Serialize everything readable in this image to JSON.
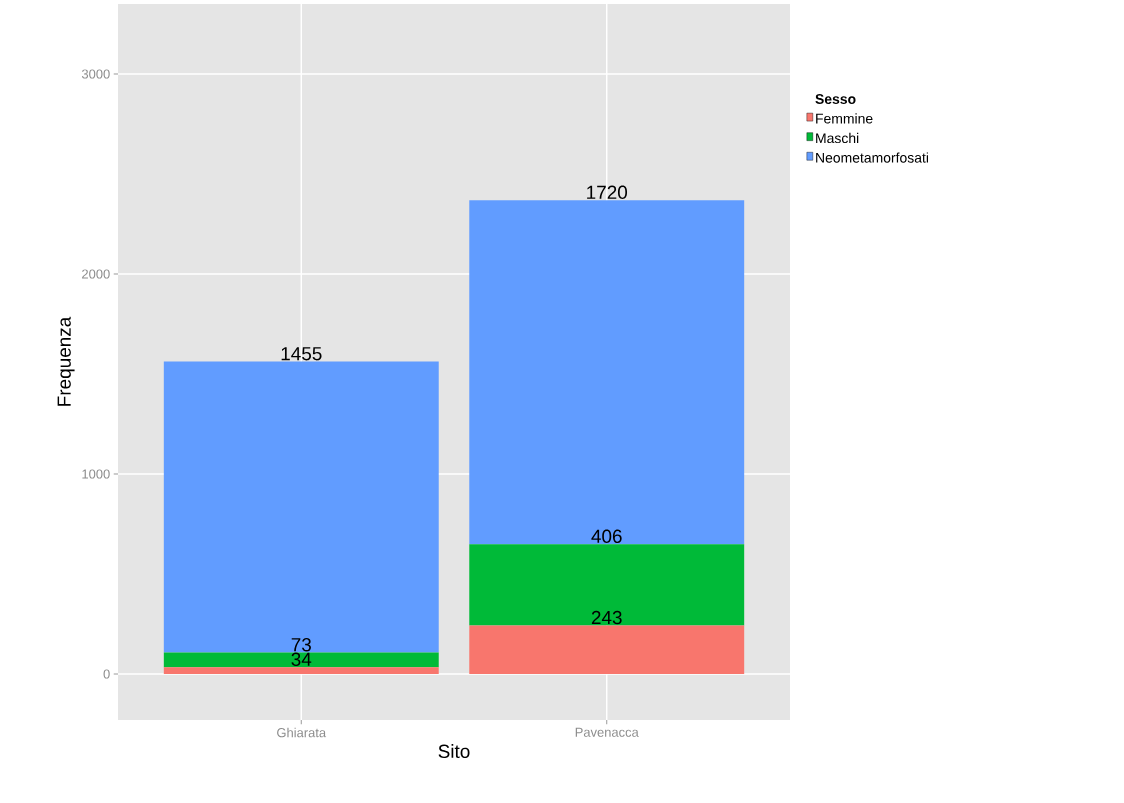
{
  "chart_data": {
    "type": "bar",
    "stacked": true,
    "xlabel": "Sito",
    "ylabel": "Frequenza",
    "legend_title": "Sesso",
    "legend": "right",
    "categories": [
      "Ghiarata",
      "Pavenacca"
    ],
    "series": [
      {
        "name": "Femmine",
        "color": "#f8766d",
        "values": [
          34,
          243
        ]
      },
      {
        "name": "Maschi",
        "color": "#00ba38",
        "values": [
          73,
          406
        ]
      },
      {
        "name": "Neometamorfosati",
        "color": "#619cff",
        "values": [
          1455,
          1720
        ]
      }
    ],
    "ylim": [
      -230,
      3350
    ],
    "yticks": [
      0,
      1000,
      2000,
      3000
    ],
    "grid": true,
    "data_labels": true
  }
}
